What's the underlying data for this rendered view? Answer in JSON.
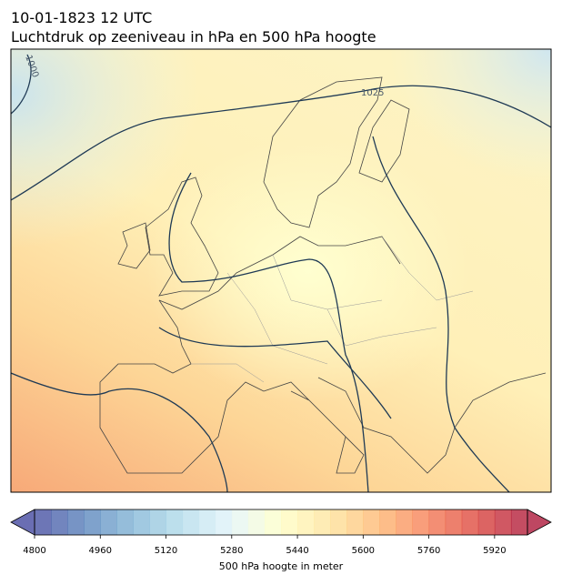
{
  "header": {
    "title": "10-01-1823 12 UTC",
    "subtitle": "Luchtdruk op zeeniveau in hPa en 500 hPa hoogte"
  },
  "map": {
    "contour_labels": [
      "1000",
      "1025"
    ]
  },
  "colorbar": {
    "lim": [
      4800,
      6000
    ],
    "step": 40,
    "ticks": [
      4800,
      4960,
      5120,
      5280,
      5440,
      5600,
      5760,
      5920
    ],
    "label": "500 hPa hoogte in meter",
    "colors": [
      "#313695",
      "#4575b4",
      "#74add1",
      "#abd9e9",
      "#e0f3f8",
      "#ffffbf",
      "#fee090",
      "#fdae61",
      "#f46d43",
      "#d73027",
      "#a50026"
    ]
  }
}
